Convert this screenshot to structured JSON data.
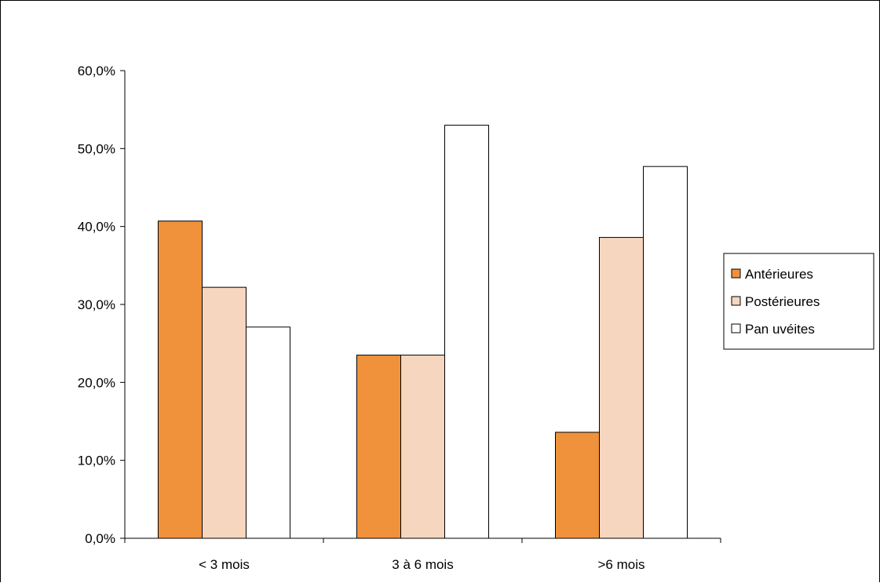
{
  "chart_data": {
    "type": "bar",
    "categories": [
      "< 3 mois",
      "3 à 6 mois",
      ">6 mois"
    ],
    "series": [
      {
        "name": "Antérieures",
        "values": [
          40.7,
          23.5,
          13.6
        ],
        "color": "#f0923b"
      },
      {
        "name": "Postérieures",
        "values": [
          32.2,
          23.5,
          38.6
        ],
        "color": "#f6d6bf"
      },
      {
        "name": "Pan uvéites",
        "values": [
          27.1,
          53.0,
          47.7
        ],
        "color": "#ffffff"
      }
    ],
    "yticks": [
      "0,0%",
      "10,0%",
      "20,0%",
      "30,0%",
      "40,0%",
      "50,0%",
      "60,0%"
    ],
    "ylim": [
      0,
      60
    ],
    "grid": false,
    "legend_position": "right"
  }
}
